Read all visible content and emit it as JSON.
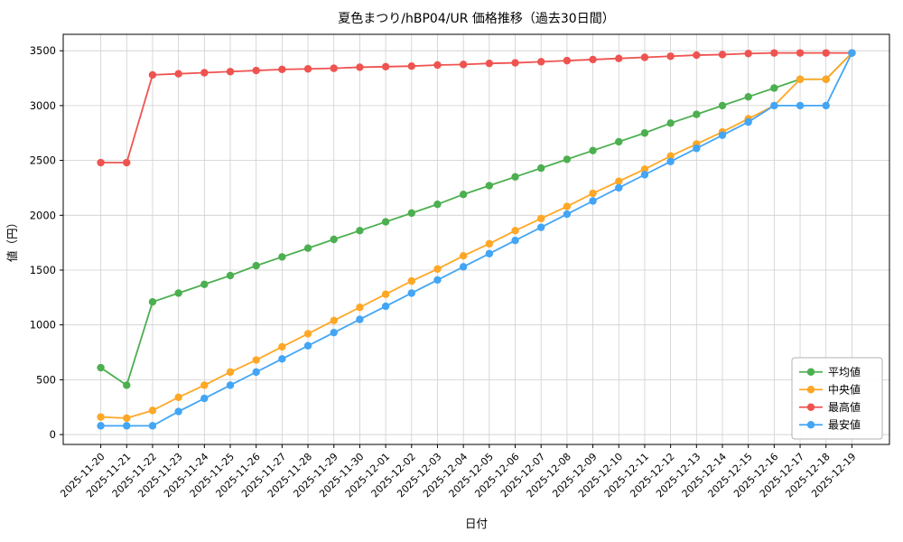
{
  "chart_data": {
    "type": "line",
    "title": "夏色まつり/hBP04/UR 価格推移（過去30日間）",
    "xlabel": "日付",
    "ylabel": "値（円）",
    "grid": true,
    "legend_position": "lower right",
    "ylim": [
      -90,
      3650
    ],
    "yticks": [
      0,
      500,
      1000,
      1500,
      2000,
      2500,
      3000,
      3500
    ],
    "x": [
      "2025-11-20",
      "2025-11-21",
      "2025-11-22",
      "2025-11-23",
      "2025-11-24",
      "2025-11-25",
      "2025-11-26",
      "2025-11-27",
      "2025-11-28",
      "2025-11-29",
      "2025-11-30",
      "2025-12-01",
      "2025-12-02",
      "2025-12-03",
      "2025-12-04",
      "2025-12-05",
      "2025-12-06",
      "2025-12-07",
      "2025-12-08",
      "2025-12-09",
      "2025-12-10",
      "2025-12-11",
      "2025-12-12",
      "2025-12-13",
      "2025-12-14",
      "2025-12-15",
      "2025-12-16",
      "2025-12-17",
      "2025-12-18",
      "2025-12-19"
    ],
    "series": [
      {
        "name": "平均値",
        "color": "#4caf50",
        "values": [
          610,
          450,
          1210,
          1290,
          1370,
          1450,
          1540,
          1620,
          1700,
          1780,
          1860,
          1940,
          2020,
          2100,
          2190,
          2270,
          2350,
          2430,
          2510,
          2590,
          2670,
          2750,
          2840,
          2920,
          3000,
          3080,
          3160,
          3240,
          3240,
          3480
        ]
      },
      {
        "name": "中央値",
        "color": "#ffa726",
        "values": [
          160,
          150,
          220,
          340,
          450,
          570,
          680,
          800,
          920,
          1040,
          1160,
          1280,
          1400,
          1510,
          1630,
          1740,
          1860,
          1970,
          2080,
          2200,
          2310,
          2420,
          2540,
          2650,
          2760,
          2880,
          3000,
          3240,
          3240,
          3480
        ]
      },
      {
        "name": "最高値",
        "color": "#ef5350",
        "values": [
          2480,
          2480,
          3280,
          3290,
          3300,
          3310,
          3320,
          3330,
          3335,
          3340,
          3350,
          3355,
          3360,
          3370,
          3375,
          3385,
          3390,
          3400,
          3410,
          3420,
          3430,
          3440,
          3450,
          3460,
          3465,
          3475,
          3480,
          3480,
          3480,
          3480
        ]
      },
      {
        "name": "最安値",
        "color": "#42a5f5",
        "values": [
          80,
          80,
          80,
          210,
          330,
          450,
          570,
          690,
          810,
          930,
          1050,
          1170,
          1290,
          1410,
          1530,
          1650,
          1770,
          1890,
          2010,
          2130,
          2250,
          2370,
          2490,
          2610,
          2730,
          2850,
          3000,
          3000,
          3000,
          3480
        ]
      }
    ],
    "colors": {
      "grid": "#cfcfcf",
      "axes": "#000000",
      "legend_border": "#b3b3b3",
      "legend_bg": "#ffffff"
    }
  }
}
